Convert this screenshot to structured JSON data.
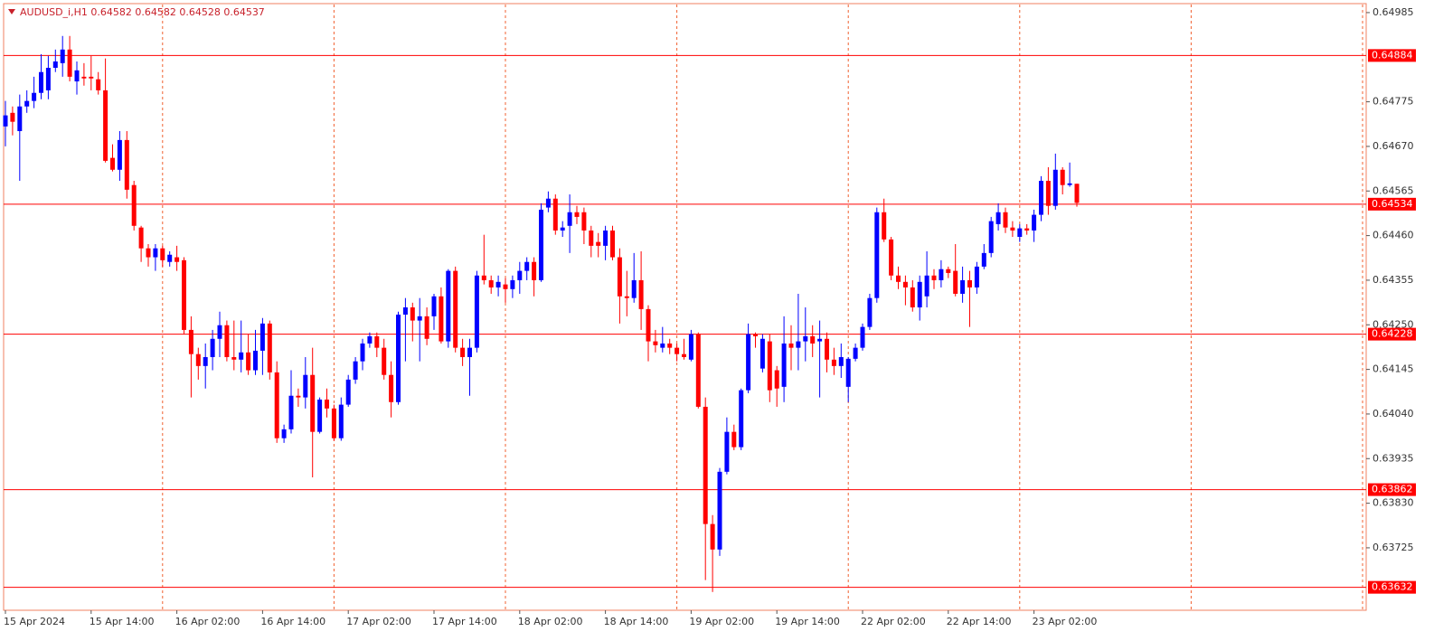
{
  "chart_data": {
    "type": "candlestick",
    "title": "AUDUSD_i,H1 0.64582 0.64582 0.64528 0.64537",
    "up_color": "#0000ff",
    "down_color": "#ff0000",
    "level_color": "#ff0000",
    "ylim": [
      0.63578,
      0.65004
    ],
    "yticks": [
      0.64985,
      0.64775,
      {
        "value": 0.6467,
        "label": "0.64670"
      },
      0.64565,
      {
        "value": 0.6446,
        "label": "0.64460"
      },
      0.64355,
      {
        "value": 0.6425,
        "label": "0.64250"
      },
      0.64145,
      {
        "value": 0.6404,
        "label": "0.64040"
      },
      0.63935,
      {
        "value": 0.6383,
        "label": "0.63830"
      },
      0.63725
    ],
    "levels": [
      0.64884,
      0.64534,
      0.64228,
      0.63862,
      0.63632
    ],
    "categories": [
      "15 Apr 2024",
      null,
      null,
      null,
      null,
      null,
      null,
      null,
      null,
      null,
      null,
      null,
      "15 Apr 14:00",
      null,
      null,
      null,
      null,
      null,
      null,
      null,
      null,
      null,
      null,
      null,
      "16 Apr 02:00",
      null,
      null,
      null,
      null,
      null,
      null,
      null,
      null,
      null,
      null,
      null,
      "16 Apr 14:00",
      null,
      null,
      null,
      null,
      null,
      null,
      null,
      null,
      null,
      null,
      null,
      "17 Apr 02:00",
      null,
      null,
      null,
      null,
      null,
      null,
      null,
      null,
      null,
      null,
      null,
      "17 Apr 14:00",
      null,
      null,
      null,
      null,
      null,
      null,
      null,
      null,
      null,
      null,
      null,
      "18 Apr 02:00",
      null,
      null,
      null,
      null,
      null,
      null,
      null,
      null,
      null,
      null,
      null,
      "18 Apr 14:00",
      null,
      null,
      null,
      null,
      null,
      null,
      null,
      null,
      null,
      null,
      null,
      "19 Apr 02:00",
      null,
      null,
      null,
      null,
      null,
      null,
      null,
      null,
      null,
      null,
      null,
      "19 Apr 14:00",
      null,
      null,
      null,
      null,
      null,
      null,
      null,
      null,
      null,
      null,
      null,
      "22 Apr 02:00",
      null,
      null,
      null,
      null,
      null,
      null,
      null,
      null,
      null,
      null,
      null,
      "22 Apr 14:00",
      null,
      null,
      null,
      null,
      null,
      null,
      null,
      null,
      null,
      null,
      null,
      "23 Apr 02:00",
      null,
      null,
      null,
      null,
      null,
      null
    ],
    "open": [
      0.64717,
      0.64749,
      0.64706,
      0.64764,
      0.64777,
      0.64796,
      0.64802,
      0.64855,
      0.64866,
      0.64898,
      0.64823,
      0.64834,
      0.64834,
      0.64828,
      0.64802,
      0.64643,
      0.64615,
      0.64685,
      0.64579,
      0.64479,
      0.6443,
      0.64409,
      0.6443,
      0.64398,
      0.64409,
      0.64402,
      0.64238,
      0.64181,
      0.64153,
      0.64174,
      0.64217,
      0.64249,
      0.64174,
      0.64168,
      0.64185,
      0.64143,
      0.64189,
      0.64253,
      0.64138,
      0.63983,
      0.64004,
      0.64083,
      0.64079,
      0.64132,
      0.63998,
      0.64074,
      0.64053,
      0.63983,
      0.64062,
      0.64121,
      0.64164,
      0.64206,
      0.64223,
      0.64196,
      0.64132,
      0.64068,
      0.64274,
      0.64291,
      0.6426,
      0.6427,
      0.6427,
      0.64317,
      0.64211,
      0.64377,
      0.64196,
      0.64174,
      0.64196,
      0.64366,
      0.64355,
      0.64338,
      0.64345,
      0.64334,
      0.64355,
      0.64377,
      0.64398,
      0.64355,
      0.64526,
      0.64547,
      0.64472,
      0.64483,
      0.64515,
      0.64515,
      0.64472,
      0.64445,
      0.64436,
      0.64472,
      0.64409,
      0.64317,
      0.64313,
      0.64355,
      0.64287,
      0.64211,
      0.64196,
      0.64206,
      0.64196,
      0.64181,
      0.64168,
      0.64228,
      0.64057,
      0.63781,
      0.63721,
      0.63904,
      0.63998,
      0.63962,
      0.64096,
      0.64228,
      0.64147,
      0.64211,
      0.64143,
      0.64104,
      0.64206,
      0.64196,
      0.64211,
      0.64223,
      0.64211,
      0.64217,
      0.64168,
      0.64153,
      0.64104,
      0.6417,
      0.64196,
      0.64245,
      0.64313,
      0.64515,
      0.64451,
      0.64366,
      0.64351,
      0.64338,
      0.64291,
      0.64317,
      0.64366,
      0.64355,
      0.64381,
      0.64377,
      0.64323,
      0.64355,
      0.64338,
      0.64387,
      0.64419,
      0.64487,
      0.64515,
      0.64479,
      0.64457,
      0.64477,
      0.64472,
      0.64509,
      0.64589,
      0.6453,
      0.64615,
      0.64579,
      0.64582
    ],
    "high": [
      0.64777,
      0.64764,
      0.64792,
      0.64802,
      0.64834,
      0.64887,
      0.64883,
      0.64898,
      0.6493,
      0.6493,
      0.6487,
      0.64866,
      0.64883,
      0.64845,
      0.64877,
      0.64675,
      0.64706,
      0.64706,
      0.64589,
      0.64483,
      0.6444,
      0.6444,
      0.64436,
      0.64423,
      0.64436,
      0.64409,
      0.6427,
      0.64196,
      0.64206,
      0.64238,
      0.64281,
      0.6426,
      0.6426,
      0.6426,
      0.64228,
      0.64238,
      0.64266,
      0.6426,
      0.64164,
      0.64015,
      0.64143,
      0.641,
      0.64174,
      0.64196,
      0.64079,
      0.641,
      0.64062,
      0.64079,
      0.64132,
      0.64174,
      0.64217,
      0.64232,
      0.64232,
      0.64217,
      0.64164,
      0.64281,
      0.64313,
      0.64302,
      0.64313,
      0.64291,
      0.64323,
      0.64338,
      0.64381,
      0.64387,
      0.64217,
      0.64217,
      0.64377,
      0.64462,
      0.64366,
      0.64366,
      0.6436,
      0.64366,
      0.64398,
      0.64409,
      0.64409,
      0.64536,
      0.64564,
      0.64557,
      0.64494,
      0.64557,
      0.6453,
      0.64526,
      0.64483,
      0.64466,
      0.64483,
      0.64483,
      0.6443,
      0.64377,
      0.64419,
      0.64423,
      0.64296,
      0.64238,
      0.64245,
      0.64217,
      0.64206,
      0.64217,
      0.64238,
      0.64232,
      0.64079,
      0.63802,
      0.63913,
      0.64032,
      0.64015,
      0.641,
      0.64253,
      0.64232,
      0.64228,
      0.64228,
      0.64153,
      0.6427,
      0.64249,
      0.64323,
      0.64291,
      0.64249,
      0.6426,
      0.64232,
      0.64196,
      0.64206,
      0.64174,
      0.64206,
      0.64253,
      0.64323,
      0.64526,
      0.64547,
      0.64457,
      0.64387,
      0.64366,
      0.64355,
      0.64366,
      0.64423,
      0.64381,
      0.64402,
      0.64387,
      0.6444,
      0.64387,
      0.64377,
      0.64398,
      0.6444,
      0.64504,
      0.64536,
      0.64526,
      0.64494,
      0.64487,
      0.64487,
      0.64521,
      0.646,
      0.64621,
      0.64653,
      0.64621,
      0.64632,
      0.64582
    ],
    "low": [
      0.6467,
      0.64696,
      0.64589,
      0.64749,
      0.6476,
      0.64781,
      0.64781,
      0.64845,
      0.64834,
      0.64823,
      0.64792,
      0.64813,
      0.64802,
      0.64792,
      0.64632,
      0.64611,
      0.64589,
      0.64547,
      0.64472,
      0.64398,
      0.64387,
      0.64377,
      0.64387,
      0.64387,
      0.64377,
      0.64228,
      0.64079,
      0.64121,
      0.641,
      0.64143,
      0.64174,
      0.64164,
      0.64143,
      0.64138,
      0.64132,
      0.64132,
      0.64132,
      0.64121,
      0.63972,
      0.63972,
      0.63994,
      0.64057,
      0.64053,
      0.63891,
      0.63994,
      0.64032,
      0.63977,
      0.63977,
      0.64057,
      0.64111,
      0.64143,
      0.64196,
      0.64174,
      0.64121,
      0.64032,
      0.64062,
      0.64164,
      0.64211,
      0.64164,
      0.64202,
      0.64238,
      0.64206,
      0.64196,
      0.64185,
      0.64153,
      0.64083,
      0.64185,
      0.64345,
      0.64323,
      0.64317,
      0.64302,
      0.64313,
      0.64323,
      0.64355,
      0.64317,
      0.64351,
      0.64515,
      0.64462,
      0.64457,
      0.64419,
      0.64487,
      0.6444,
      0.64409,
      0.64409,
      0.64402,
      0.64402,
      0.64253,
      0.6427,
      0.64302,
      0.64238,
      0.64164,
      0.64185,
      0.64185,
      0.64181,
      0.64164,
      0.64168,
      0.64164,
      0.64053,
      0.63649,
      0.63621,
      0.63706,
      0.63898,
      0.63955,
      0.63955,
      0.64089,
      0.64196,
      0.64138,
      0.64068,
      0.64057,
      0.64068,
      0.64143,
      0.64143,
      0.64164,
      0.64174,
      0.64079,
      0.64138,
      0.64132,
      0.64125,
      0.64068,
      0.64164,
      0.64189,
      0.64238,
      0.64302,
      0.64445,
      0.64355,
      0.64334,
      0.64296,
      0.64281,
      0.6426,
      0.64291,
      0.64334,
      0.64338,
      0.6436,
      0.64317,
      0.64302,
      0.64245,
      0.64323,
      0.64381,
      0.64409,
      0.64472,
      0.64466,
      0.64457,
      0.64445,
      0.64462,
      0.64445,
      0.64494,
      0.64509,
      0.64521,
      0.64557,
      0.64575,
      0.64528
    ],
    "close": [
      0.64743,
      0.64728,
      0.64764,
      0.64777,
      0.64796,
      0.64845,
      0.64855,
      0.6487,
      0.64898,
      0.64834,
      0.64849,
      0.6483,
      0.6483,
      0.64802,
      0.64636,
      0.64615,
      0.64685,
      0.64568,
      0.64483,
      0.6443,
      0.64409,
      0.6443,
      0.64402,
      0.64415,
      0.64398,
      0.64238,
      0.64181,
      0.64153,
      0.64174,
      0.64217,
      0.64249,
      0.64174,
      0.64168,
      0.64185,
      0.64143,
      0.64189,
      0.64253,
      0.64138,
      0.63983,
      0.64004,
      0.64083,
      0.64079,
      0.64132,
      0.63998,
      0.64074,
      0.64053,
      0.63983,
      0.64062,
      0.64121,
      0.64164,
      0.64206,
      0.64223,
      0.64196,
      0.64132,
      0.64068,
      0.64274,
      0.64291,
      0.6426,
      0.6427,
      0.64217,
      0.64317,
      0.64211,
      0.64377,
      0.64196,
      0.64174,
      0.64196,
      0.64366,
      0.64355,
      0.64338,
      0.64351,
      0.64334,
      0.64355,
      0.64377,
      0.64398,
      0.64355,
      0.64521,
      0.64547,
      0.64472,
      0.64479,
      0.64515,
      0.64504,
      0.64472,
      0.64436,
      0.64436,
      0.64472,
      0.64409,
      0.64317,
      0.64313,
      0.64355,
      0.64287,
      0.64211,
      0.64202,
      0.64206,
      0.64196,
      0.64181,
      0.64174,
      0.64228,
      0.64057,
      0.63781,
      0.63721,
      0.63904,
      0.63998,
      0.63962,
      0.64096,
      0.64228,
      0.64223,
      0.64217,
      0.64096,
      0.641,
      0.64206,
      0.64196,
      0.64211,
      0.64223,
      0.64206,
      0.64217,
      0.64168,
      0.64153,
      0.64174,
      0.6417,
      0.64196,
      0.64245,
      0.64313,
      0.64515,
      0.64451,
      0.64366,
      0.64351,
      0.64338,
      0.64291,
      0.64351,
      0.64366,
      0.64355,
      0.64381,
      0.64372,
      0.64323,
      0.64355,
      0.64338,
      0.64387,
      0.64419,
      0.64494,
      0.64515,
      0.64479,
      0.64472,
      0.64477,
      0.64472,
      0.64509,
      0.64589,
      0.6453,
      0.64615,
      0.64579,
      0.64583,
      0.64537
    ]
  }
}
